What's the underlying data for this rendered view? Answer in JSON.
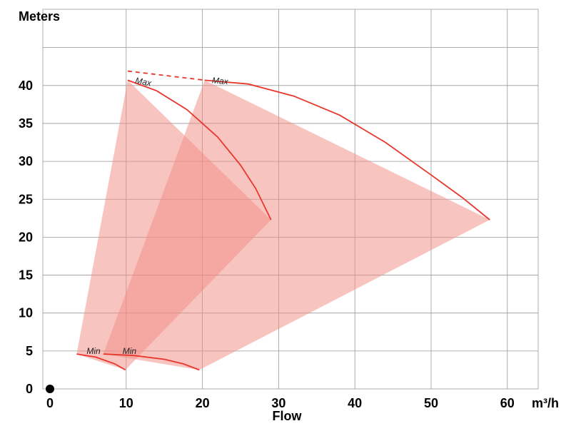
{
  "chart_data": {
    "type": "area",
    "ylabel": "Meters",
    "xlabel": "Flow",
    "x_unit": "m³/h",
    "xlim": [
      0,
      64
    ],
    "ylim": [
      0,
      45
    ],
    "x_ticks": [
      0,
      10,
      20,
      30,
      40,
      50,
      60
    ],
    "y_ticks": [
      0,
      5,
      10,
      15,
      20,
      25,
      30,
      35,
      40
    ],
    "grid": true,
    "colors": {
      "fill": "#f28a82",
      "line": "#e8362b",
      "grid": "#999999",
      "origin_marker": "#000000"
    },
    "series": [
      {
        "max_label": "Max",
        "min_label": "Min",
        "polygon": [
          [
            3.5,
            4.6
          ],
          [
            10.2,
            40.7
          ],
          [
            29,
            22.3
          ],
          [
            9.9,
            2.5
          ]
        ],
        "max_curve": [
          [
            10.2,
            40.7
          ],
          [
            14,
            39.3
          ],
          [
            18,
            36.8
          ],
          [
            22,
            33.2
          ],
          [
            25,
            29.5
          ],
          [
            27,
            26.4
          ],
          [
            29,
            22.3
          ]
        ],
        "min_curve": [
          [
            3.5,
            4.6
          ],
          [
            6,
            4.2
          ],
          [
            8.5,
            3.3
          ],
          [
            9.9,
            2.5
          ]
        ]
      },
      {
        "max_label": "Max",
        "min_label": "Min",
        "polygon": [
          [
            7,
            4.6
          ],
          [
            20.3,
            40.7
          ],
          [
            57.7,
            22.3
          ],
          [
            19.6,
            2.5
          ]
        ],
        "max_curve": [
          [
            20.3,
            40.7
          ],
          [
            26,
            40.2
          ],
          [
            32,
            38.6
          ],
          [
            38,
            36.1
          ],
          [
            44,
            32.5
          ],
          [
            50,
            28.2
          ],
          [
            54,
            25.3
          ],
          [
            57.7,
            22.3
          ]
        ],
        "min_curve": [
          [
            7,
            4.6
          ],
          [
            11,
            4.4
          ],
          [
            15,
            3.9
          ],
          [
            17.5,
            3.3
          ],
          [
            19.6,
            2.5
          ]
        ]
      }
    ],
    "max_connector": [
      [
        10.2,
        41.9
      ],
      [
        20.3,
        40.7
      ]
    ],
    "origin_marker": [
      0,
      0
    ]
  }
}
